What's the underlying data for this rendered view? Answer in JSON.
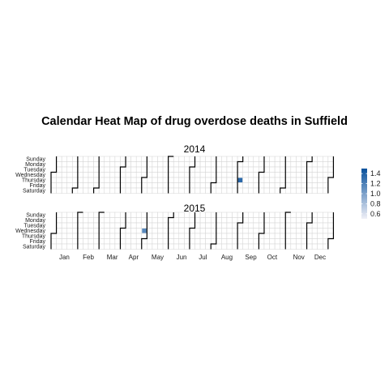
{
  "chart_data": {
    "type": "heatmap",
    "title": "Calendar Heat Map of drug overdose deaths in Suffield",
    "xlabel": "",
    "ylabel": "",
    "years": [
      {
        "label": "2014",
        "cells": [
          {
            "date": "2014-09-04",
            "weekday": "Thursday",
            "month": "Sep",
            "value": 1.35
          }
        ]
      },
      {
        "label": "2015",
        "cells": [
          {
            "date": "2015-04-29",
            "weekday": "Wednesday",
            "month": "Apr",
            "value": 1.15
          }
        ]
      }
    ],
    "weekdays": [
      "Sunday",
      "Monday",
      "Tuesday",
      "Wednesday",
      "Thursday",
      "Friday",
      "Saturday"
    ],
    "months": [
      "Jan",
      "Feb",
      "Mar",
      "Apr",
      "May",
      "Jun",
      "Jul",
      "Aug",
      "Sep",
      "Oct",
      "Nov",
      "Dec"
    ],
    "legend": {
      "ticks": [
        "1.4",
        "1.2",
        "1.0",
        "0.8",
        "0.6"
      ],
      "range": [
        0.5,
        1.5
      ],
      "color_low": "#f0f0f7",
      "color_high": "#08519c",
      "placement": "right"
    },
    "grid_color": "#d4d4d4",
    "empty_cell_color": "#ffffff"
  }
}
